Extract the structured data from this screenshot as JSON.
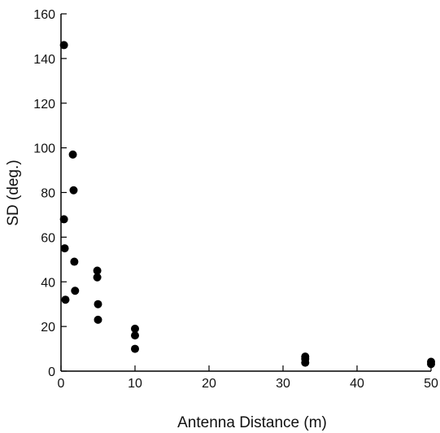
{
  "chart_data": {
    "type": "scatter",
    "title": "",
    "xlabel": "Antenna Distance  (m)",
    "ylabel": "SD (deg.)",
    "xlim": [
      0,
      50
    ],
    "ylim": [
      0,
      160
    ],
    "xticks": [
      0,
      10,
      20,
      30,
      40,
      50
    ],
    "yticks": [
      0,
      20,
      40,
      60,
      80,
      100,
      120,
      140,
      160
    ],
    "grid": false,
    "legend": "none",
    "marker_color": "#000000",
    "series": [
      {
        "points": [
          {
            "x": 0.4,
            "y": 146
          },
          {
            "x": 0.4,
            "y": 68
          },
          {
            "x": 0.5,
            "y": 55
          },
          {
            "x": 0.6,
            "y": 32
          },
          {
            "x": 1.6,
            "y": 97
          },
          {
            "x": 1.7,
            "y": 81
          },
          {
            "x": 1.8,
            "y": 49
          },
          {
            "x": 1.9,
            "y": 36
          },
          {
            "x": 4.9,
            "y": 45
          },
          {
            "x": 4.9,
            "y": 42
          },
          {
            "x": 5.0,
            "y": 30
          },
          {
            "x": 5.0,
            "y": 23
          },
          {
            "x": 10.0,
            "y": 19
          },
          {
            "x": 10.0,
            "y": 16
          },
          {
            "x": 10.0,
            "y": 10
          },
          {
            "x": 33.0,
            "y": 6.5
          },
          {
            "x": 33.0,
            "y": 5.5
          },
          {
            "x": 33.0,
            "y": 3.8
          },
          {
            "x": 50.0,
            "y": 4.2
          },
          {
            "x": 50.0,
            "y": 3.2
          }
        ]
      }
    ]
  }
}
